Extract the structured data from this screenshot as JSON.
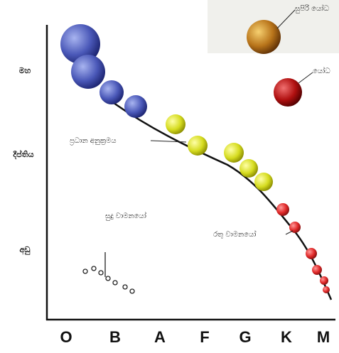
{
  "x_labels": [
    "O",
    "B",
    "A",
    "F",
    "G",
    "K",
    "M"
  ],
  "y_labels": {
    "high": "මහ",
    "middle": "දීප්තිය",
    "low": "අඩු"
  },
  "annotations": {
    "main_sequence": "ප්‍රධාන අනුක්‍රමය",
    "white_dwarfs": "සුදු වාමනයෝ",
    "red_dwarfs": "රතු වාමනයෝ",
    "supergiants": "සුපිරි යෝධ",
    "giants": "යෝධ"
  }
}
